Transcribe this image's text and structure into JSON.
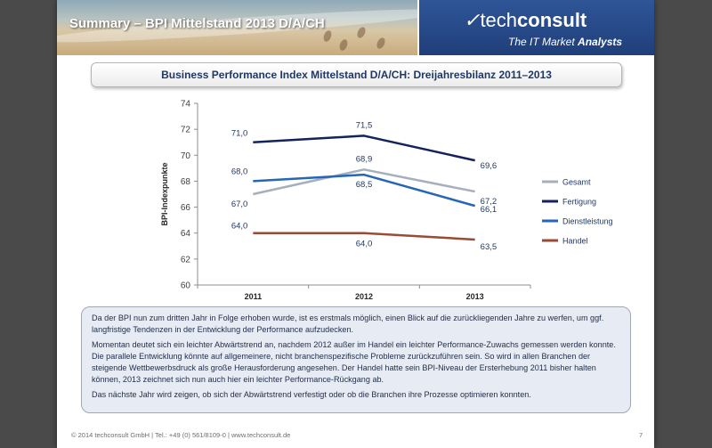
{
  "header": {
    "title": "Summary – BPI Mittelstand 2013 D/A/CH",
    "logo": "techconsult",
    "logo_prefix": "tech",
    "logo_suffix": "consult",
    "tagline_prefix": "The IT Market ",
    "tagline_bold": "Analysts",
    "brand_color": "#2f5597"
  },
  "subtitle": "Business Performance Index Mittelstand D/A/CH: Dreijahresbilanz 2011–2013",
  "chart_data": {
    "type": "line",
    "title": "",
    "xlabel": "",
    "ylabel": "BPI-Indexpunkte",
    "categories": [
      "2011",
      "2012",
      "2013"
    ],
    "ylim": [
      60,
      74
    ],
    "yticks": [
      "60",
      "62",
      "64",
      "66",
      "68",
      "70",
      "72",
      "74"
    ],
    "grid": false,
    "legend_position": "right",
    "series": [
      {
        "name": "Gesamt",
        "values": [
          67.0,
          68.9,
          67.2
        ],
        "labels": [
          "67,0",
          "68,9",
          "67,2"
        ],
        "color": "#a6b0bd"
      },
      {
        "name": "Fertigung",
        "values": [
          71.0,
          71.5,
          69.6
        ],
        "labels": [
          "71,0",
          "71,5",
          "69,6"
        ],
        "color": "#14235c"
      },
      {
        "name": "Dienstleistung",
        "values": [
          68.0,
          68.5,
          66.1
        ],
        "labels": [
          "68,0",
          "68,5",
          "66,1"
        ],
        "color": "#2466b8"
      },
      {
        "name": "Handel",
        "values": [
          64.0,
          64.0,
          63.5
        ],
        "labels": [
          "64,0",
          "64,0",
          "63,5"
        ],
        "color": "#9b4a36"
      }
    ]
  },
  "text": {
    "p1": "Da der BPI nun zum dritten Jahr in Folge erhoben wurde, ist es erstmals möglich, einen Blick auf die zurückliegenden Jahre zu werfen, um ggf. langfristige Tendenzen in der Entwicklung der Performance aufzudecken.",
    "p2": "Momentan deutet sich ein leichter Abwärtstrend an, nachdem 2012 außer im Handel ein leichter Performance-Zuwachs gemessen werden konnte. Die parallele Entwicklung könnte auf allgemeinere, nicht branchenspezifische Probleme zurückzuführen sein. So wird in allen Branchen der steigende Wettbewerbsdruck als große Herausforderung angesehen. Der Handel hatte sein BPI-Niveau der Ersterhebung 2011 bisher halten können, 2013 zeichnet sich nun auch hier ein leichter Performance-Rückgang ab.",
    "p3": "Das nächste Jahr wird zeigen, ob sich der Abwärtstrend verfestigt oder ob die Branchen ihre Prozesse optimieren konnten."
  },
  "footer": "© 2014 techconsult GmbH   |   Tel.: +49 (0) 561/8109-0   |   www.techconsult.de",
  "page_number": "7"
}
